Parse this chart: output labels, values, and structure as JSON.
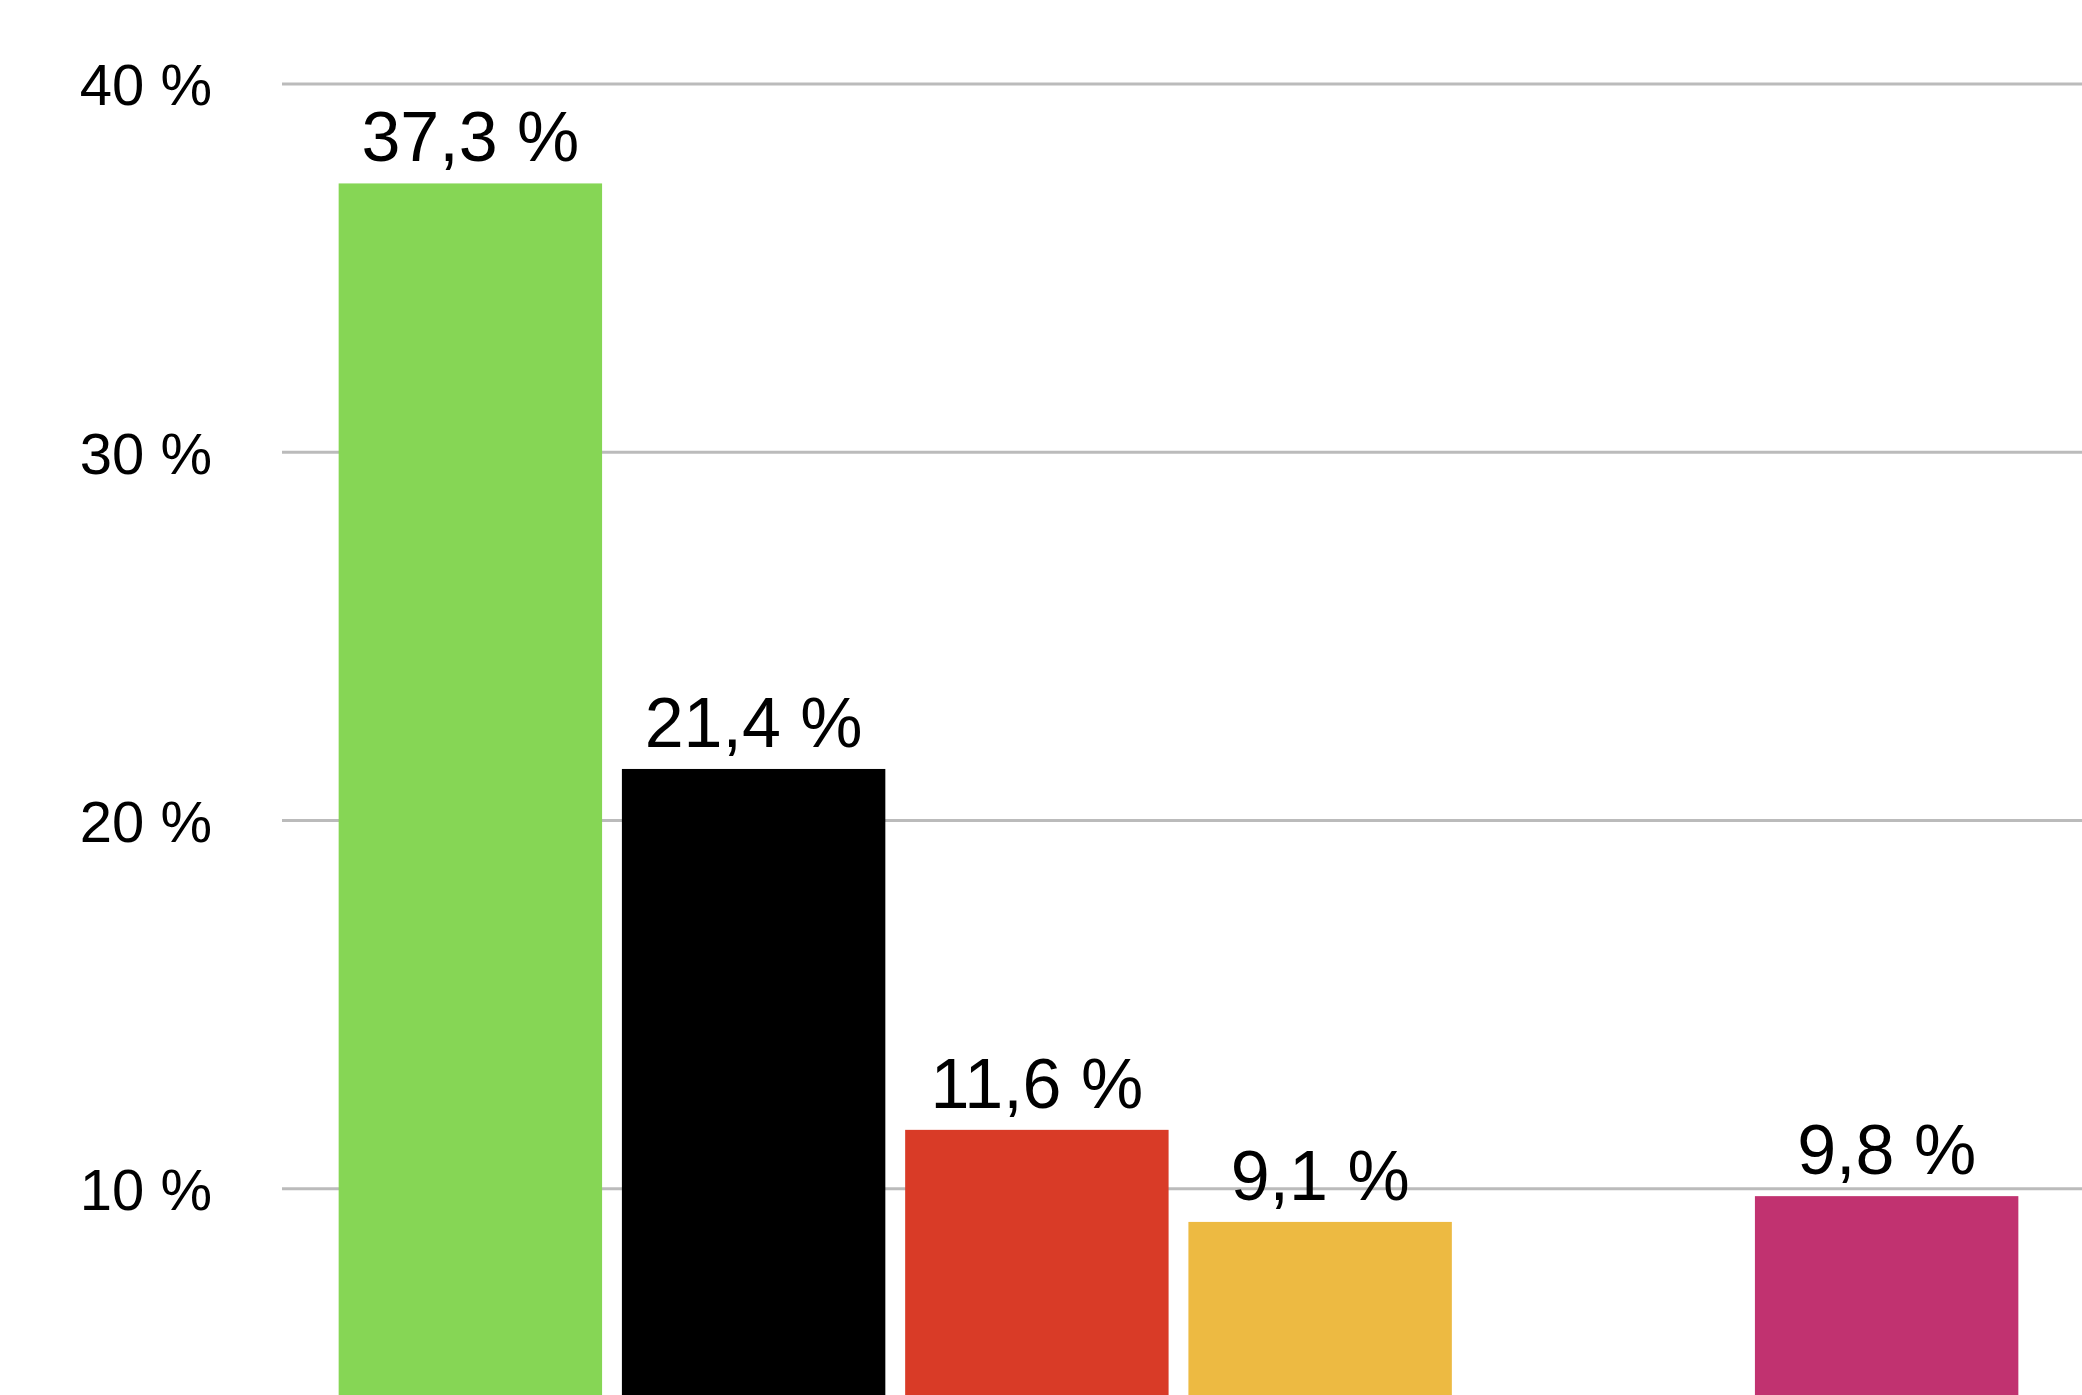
{
  "chart_data": {
    "type": "bar",
    "categories": [
      null,
      null,
      null,
      null,
      null,
      null
    ],
    "values": [
      37.3,
      21.4,
      11.6,
      9.1,
      null,
      9.8
    ],
    "colors": [
      "#86d655",
      "#000000",
      "#d93b27",
      "#edba42",
      null,
      "#c13270"
    ],
    "value_labels": [
      "37,3 %",
      "21,4 %",
      "11,6 %",
      "9,1 %",
      null,
      "9,8 %"
    ],
    "ylim": [
      4.4,
      40
    ],
    "yticks": [
      {
        "value": 10,
        "label": "10 %"
      },
      {
        "value": 20,
        "label": "20 %"
      },
      {
        "value": 30,
        "label": "30 %"
      },
      {
        "value": 40,
        "label": "40 %"
      }
    ],
    "grid": "y"
  }
}
